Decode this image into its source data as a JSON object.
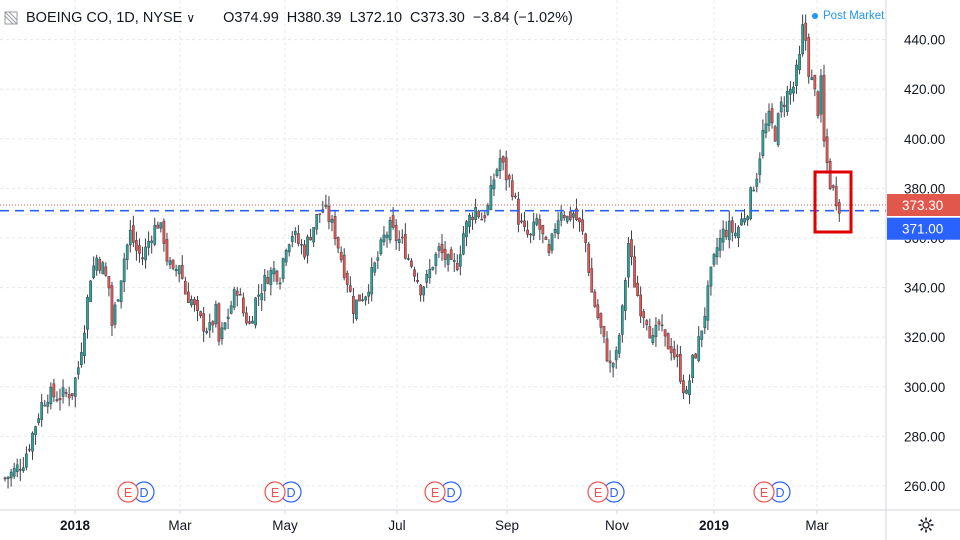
{
  "header": {
    "symbol": "BOEING CO, 1D, NYSE",
    "open": "O374.99",
    "high": "H380.39",
    "low": "L372.10",
    "close": "C373.30",
    "change": "−3.84 (−1.02%)",
    "post_market": "Post Market"
  },
  "icons": {
    "menu": "hamburger-icon",
    "dropdown": "chevron-down-icon",
    "settings": "gear-icon"
  },
  "colors": {
    "up": "#26a69a",
    "down": "#ef5350",
    "level_line": "#2962ff",
    "price_label": "#e2574c",
    "level_label": "#2962ff",
    "highlight_box": "#e00000"
  },
  "chart_data": {
    "type": "candlestick",
    "y_ticks": [
      260,
      280,
      300,
      320,
      340,
      360,
      380,
      400,
      420,
      440
    ],
    "y_tick_labels": [
      "260.00",
      "280.00",
      "300.00",
      "320.00",
      "340.00",
      "360.00",
      "380.00",
      "400.00",
      "420.00",
      "440.00"
    ],
    "ylim": [
      249,
      459
    ],
    "x_tick_labels": [
      {
        "label": "2018",
        "bold": true
      },
      {
        "label": "Mar",
        "bold": false
      },
      {
        "label": "May",
        "bold": false
      },
      {
        "label": "Jul",
        "bold": false
      },
      {
        "label": "Sep",
        "bold": false
      },
      {
        "label": "Nov",
        "bold": false
      },
      {
        "label": "2019",
        "bold": true
      },
      {
        "label": "Mar",
        "bold": false
      }
    ],
    "current_price": {
      "value": 373.3,
      "label": "373.30"
    },
    "level_line": {
      "value": 371.0,
      "label": "371.00",
      "style": "dashed"
    },
    "earnings_markers": [
      {
        "e": "E",
        "d": "D"
      },
      {
        "e": "E",
        "d": "D"
      },
      {
        "e": "E",
        "d": "D"
      },
      {
        "e": "E",
        "d": "D"
      },
      {
        "e": "E",
        "d": "D"
      }
    ],
    "close_path": [
      [
        0,
        263
      ],
      [
        3,
        266
      ],
      [
        6,
        270
      ],
      [
        8,
        277
      ],
      [
        10,
        285
      ],
      [
        12,
        293
      ],
      [
        14,
        297
      ],
      [
        17,
        296
      ],
      [
        20,
        297
      ],
      [
        22,
        298
      ],
      [
        24,
        308
      ],
      [
        26,
        325
      ],
      [
        28,
        345
      ],
      [
        30,
        352
      ],
      [
        32,
        348
      ],
      [
        34,
        340
      ],
      [
        35,
        325
      ],
      [
        37,
        338
      ],
      [
        39,
        352
      ],
      [
        41,
        362
      ],
      [
        43,
        355
      ],
      [
        45,
        352
      ],
      [
        48,
        362
      ],
      [
        50,
        366
      ],
      [
        52,
        360
      ],
      [
        53,
        352
      ],
      [
        55,
        345
      ],
      [
        57,
        350
      ],
      [
        59,
        338
      ],
      [
        61,
        335
      ],
      [
        63,
        328
      ],
      [
        65,
        325
      ],
      [
        67,
        323
      ],
      [
        69,
        330
      ],
      [
        70,
        318
      ],
      [
        72,
        325
      ],
      [
        74,
        333
      ],
      [
        76,
        340
      ],
      [
        78,
        330
      ],
      [
        80,
        325
      ],
      [
        82,
        335
      ],
      [
        84,
        340
      ],
      [
        86,
        345
      ],
      [
        88,
        347
      ],
      [
        90,
        345
      ],
      [
        92,
        358
      ],
      [
        94,
        362
      ],
      [
        96,
        358
      ],
      [
        98,
        355
      ],
      [
        100,
        362
      ],
      [
        102,
        368
      ],
      [
        104,
        372
      ],
      [
        106,
        368
      ],
      [
        108,
        362
      ],
      [
        110,
        352
      ],
      [
        112,
        343
      ],
      [
        114,
        332
      ],
      [
        116,
        336
      ],
      [
        118,
        338
      ],
      [
        120,
        345
      ],
      [
        122,
        352
      ],
      [
        124,
        360
      ],
      [
        126,
        364
      ],
      [
        128,
        360
      ],
      [
        130,
        358
      ],
      [
        132,
        352
      ],
      [
        134,
        347
      ],
      [
        136,
        340
      ],
      [
        138,
        343
      ],
      [
        140,
        350
      ],
      [
        142,
        355
      ],
      [
        144,
        352
      ],
      [
        146,
        348
      ],
      [
        148,
        350
      ],
      [
        150,
        362
      ],
      [
        152,
        368
      ],
      [
        154,
        372
      ],
      [
        156,
        368
      ],
      [
        158,
        372
      ],
      [
        160,
        384
      ],
      [
        162,
        392
      ],
      [
        164,
        385
      ],
      [
        166,
        380
      ],
      [
        168,
        368
      ],
      [
        170,
        362
      ],
      [
        172,
        360
      ],
      [
        174,
        367
      ],
      [
        176,
        360
      ],
      [
        178,
        352
      ],
      [
        180,
        365
      ],
      [
        182,
        372
      ],
      [
        184,
        368
      ],
      [
        186,
        370
      ],
      [
        188,
        365
      ],
      [
        190,
        358
      ],
      [
        192,
        338
      ],
      [
        194,
        328
      ],
      [
        196,
        318
      ],
      [
        198,
        308
      ],
      [
        200,
        312
      ],
      [
        202,
        330
      ],
      [
        204,
        358
      ],
      [
        206,
        342
      ],
      [
        208,
        332
      ],
      [
        210,
        328
      ],
      [
        212,
        318
      ],
      [
        214,
        325
      ],
      [
        216,
        318
      ],
      [
        218,
        316
      ],
      [
        220,
        310
      ],
      [
        222,
        300
      ],
      [
        223,
        296
      ],
      [
        225,
        310
      ],
      [
        227,
        318
      ],
      [
        229,
        330
      ],
      [
        231,
        345
      ],
      [
        233,
        356
      ],
      [
        235,
        362
      ],
      [
        237,
        364
      ],
      [
        239,
        362
      ],
      [
        241,
        367
      ],
      [
        243,
        372
      ],
      [
        245,
        382
      ],
      [
        246,
        386
      ],
      [
        248,
        402
      ],
      [
        250,
        408
      ],
      [
        252,
        402
      ],
      [
        254,
        413
      ],
      [
        256,
        418
      ],
      [
        258,
        421
      ],
      [
        260,
        432
      ],
      [
        261,
        444
      ],
      [
        262,
        440
      ],
      [
        263,
        428
      ],
      [
        265,
        418
      ],
      [
        266,
        412
      ],
      [
        267,
        422
      ],
      [
        268,
        398
      ],
      [
        270,
        382
      ],
      [
        272,
        376
      ],
      [
        273,
        373.3
      ]
    ]
  }
}
